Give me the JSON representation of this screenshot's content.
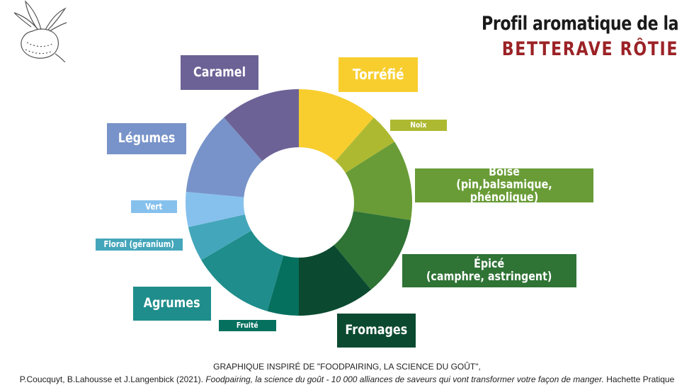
{
  "header": {
    "title_line1": "Profil aromatique de la",
    "title_line2": "BETTERAVE RÔTIE",
    "title_line2_color": "#9b2226"
  },
  "source": {
    "line1": "GRAPHIQUE INSPIRÉ DE \"FOODPAIRING, LA SCIENCE DU GOÛT\",",
    "line2_authors": "P.Coucquyt, B.Lahousse et J.Langenbick (2021). ",
    "line2_title": "Foodpairing, la science du goût - 10 000 alliances de saveurs qui vont transformer votre façon de manger.",
    "line2_publisher": " Hachette Pratique"
  },
  "chart_data": {
    "type": "donut",
    "series": [
      {
        "label": "Torréfié",
        "value": 11.5,
        "color": "#f8ce2f"
      },
      {
        "label": "Noix",
        "value": 4.5,
        "color": "#aeb932"
      },
      {
        "label": "Boisé\n(pin,balsamique, phénolique)",
        "value": 11.5,
        "color": "#699c36"
      },
      {
        "label": "Épicé\n(camphre, astringent)",
        "value": 11.5,
        "color": "#2f7335"
      },
      {
        "label": "Fromages",
        "value": 11,
        "color": "#0b4a30"
      },
      {
        "label": "Fruité",
        "value": 4.5,
        "color": "#06705f"
      },
      {
        "label": "Agrumes",
        "value": 12,
        "color": "#1e8d8b"
      },
      {
        "label": "Floral (géranium)",
        "value": 5,
        "color": "#44a6ba"
      },
      {
        "label": "Vert",
        "value": 5,
        "color": "#86c1ed"
      },
      {
        "label": "Légumes",
        "value": 12,
        "color": "#7893c9"
      },
      {
        "label": "Caramel",
        "value": 11.5,
        "color": "#6c6296"
      }
    ]
  }
}
